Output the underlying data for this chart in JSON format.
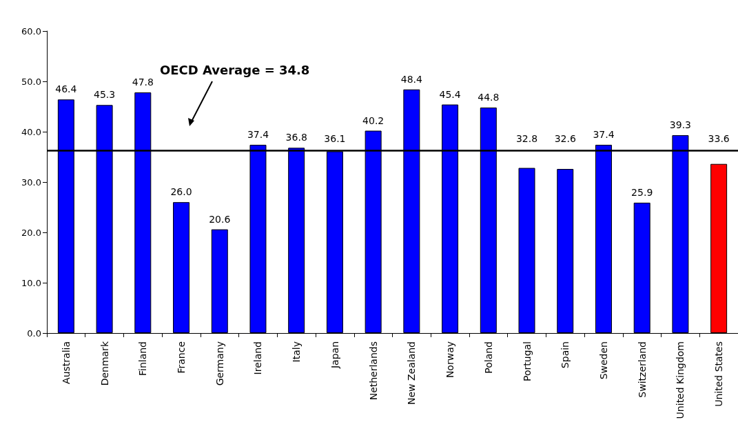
{
  "chart_data": {
    "type": "bar",
    "categories": [
      "Australia",
      "Denmark",
      "Finland",
      "France",
      "Germany",
      "Ireland",
      "Italy",
      "Japan",
      "Netherlands",
      "New Zealand",
      "Norway",
      "Poland",
      "Portugal",
      "Spain",
      "Sweden",
      "Switzerland",
      "United Kingdom",
      "United States"
    ],
    "values": [
      46.4,
      45.3,
      47.8,
      26.0,
      20.6,
      37.4,
      36.8,
      36.1,
      40.2,
      48.4,
      45.4,
      44.8,
      32.8,
      32.6,
      37.4,
      25.9,
      39.3,
      33.6
    ],
    "colors": [
      "#0000ff",
      "#0000ff",
      "#0000ff",
      "#0000ff",
      "#0000ff",
      "#0000ff",
      "#0000ff",
      "#0000ff",
      "#0000ff",
      "#0000ff",
      "#0000ff",
      "#0000ff",
      "#0000ff",
      "#0000ff",
      "#0000ff",
      "#0000ff",
      "#0000ff",
      "#ff0000"
    ],
    "value_labels": [
      "46.4",
      "45.3",
      "47.8",
      "26.0",
      "20.6",
      "37.4",
      "36.8",
      "36.1",
      "40.2",
      "48.4",
      "45.4",
      "44.8",
      "32.8",
      "32.6",
      "37.4",
      "25.9",
      "39.3",
      "33.6"
    ],
    "ylim": [
      0,
      60
    ],
    "yticks": [
      {
        "value": 0,
        "label": "0.0"
      },
      {
        "value": 10,
        "label": "10.0"
      },
      {
        "value": 20,
        "label": "20.0"
      },
      {
        "value": 30,
        "label": "30.0"
      },
      {
        "value": 40,
        "label": "40.0"
      },
      {
        "value": 50,
        "label": "50.0"
      },
      {
        "value": 60,
        "label": "60.0"
      }
    ],
    "ref_lines": [
      {
        "axis": "y",
        "value": 36.3,
        "color": "#000000"
      }
    ],
    "annotations": [
      "OECD Average = 34.8"
    ],
    "grid": false
  }
}
